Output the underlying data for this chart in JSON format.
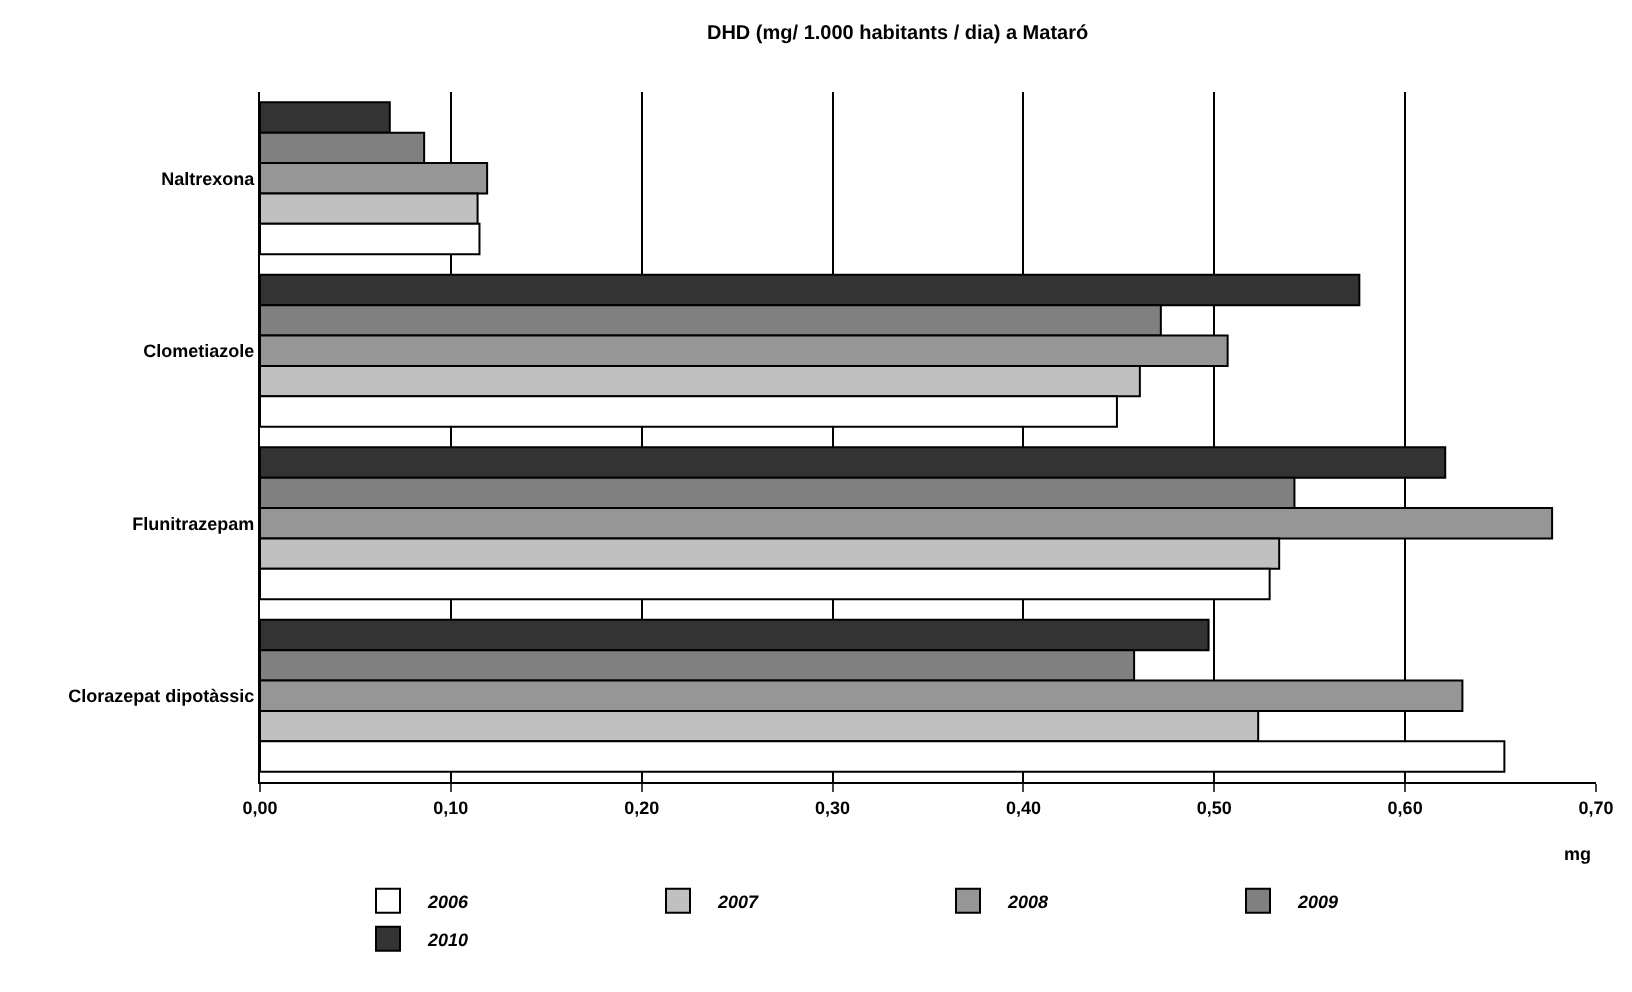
{
  "chart_data": {
    "type": "bar",
    "orientation": "horizontal",
    "title": "DHD (mg/ 1.000 habitants / dia) a Mataró",
    "xlabel": "mg",
    "categories": [
      "Naltrexona",
      "Clometiazole",
      "Flunitrazepam",
      "Clorazepat dipotàssic"
    ],
    "series": [
      {
        "name": "2006",
        "color": "#ffffff",
        "values": [
          0.115,
          0.449,
          0.529,
          0.652
        ]
      },
      {
        "name": "2007",
        "color": "#c0c0c0",
        "values": [
          0.114,
          0.461,
          0.534,
          0.523
        ]
      },
      {
        "name": "2008",
        "color": "#969696",
        "values": [
          0.119,
          0.507,
          0.677,
          0.63
        ]
      },
      {
        "name": "2009",
        "color": "#808080",
        "values": [
          0.086,
          0.472,
          0.542,
          0.458
        ]
      },
      {
        "name": "2010",
        "color": "#333333",
        "values": [
          0.068,
          0.576,
          0.621,
          0.497
        ]
      }
    ],
    "xlim": [
      0,
      0.7
    ],
    "xticks": [
      {
        "value": 0,
        "label": "0,00"
      },
      {
        "value": 0.1,
        "label": "0,10"
      },
      {
        "value": 0.2,
        "label": "0,20"
      },
      {
        "value": 0.3,
        "label": "0,30"
      },
      {
        "value": 0.4,
        "label": "0,40"
      },
      {
        "value": 0.5,
        "label": "0,50"
      },
      {
        "value": 0.6,
        "label": "0,60"
      },
      {
        "value": 0.7,
        "label": "0,70"
      }
    ],
    "grid": "x",
    "legend": "bottom"
  }
}
